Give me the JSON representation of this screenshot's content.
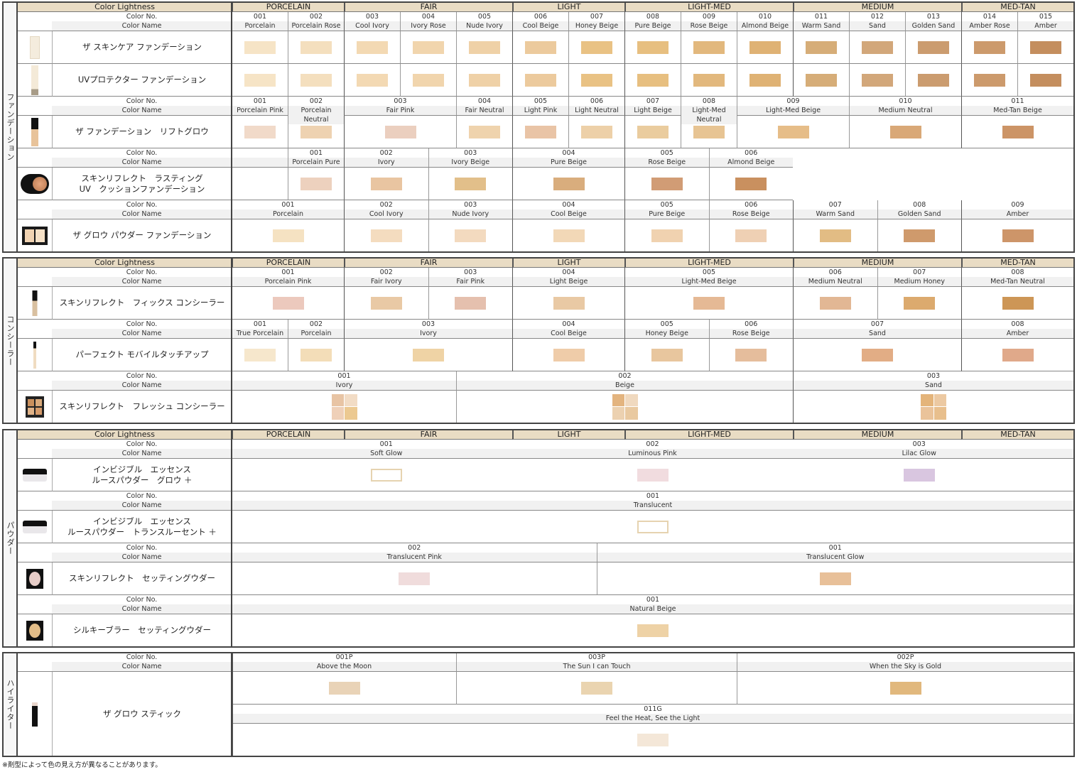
{
  "header": {
    "lightness_label": "Color Lightness",
    "levels": [
      "PORCELAIN",
      "FAIR",
      "LIGHT",
      "LIGHT-MED",
      "MEDIUM",
      "MED-TAN"
    ]
  },
  "labels": {
    "color_no": "Color No.",
    "color_name": "Color Name"
  },
  "sections": [
    {
      "category": "ファンデーション",
      "show_header": true,
      "groups": [
        {
          "shades": [
            {
              "no": "001",
              "name": "Porcelain"
            },
            {
              "no": "002",
              "name": "Porcelain Rose"
            },
            {
              "no": "003",
              "name": "Cool Ivory"
            },
            {
              "no": "004",
              "name": "Ivory Rose"
            },
            {
              "no": "005",
              "name": "Nude Ivory"
            },
            {
              "no": "006",
              "name": "Cool Beige"
            },
            {
              "no": "007",
              "name": "Honey Beige"
            },
            {
              "no": "008",
              "name": "Pure Beige"
            },
            {
              "no": "009",
              "name": "Rose Beige"
            },
            {
              "no": "010",
              "name": "Almond Beige"
            },
            {
              "no": "011",
              "name": "Warm Sand"
            },
            {
              "no": "012",
              "name": "Sand"
            },
            {
              "no": "013",
              "name": "Golden Sand"
            },
            {
              "no": "014",
              "name": "Amber Rose"
            },
            {
              "no": "015",
              "name": "Amber"
            }
          ],
          "products": [
            {
              "name": [
                "ザ スキンケア ファンデーション"
              ],
              "icon": "foundation-bottle-icon",
              "colors": [
                "#f6e4c6",
                "#f4dfbe",
                "#f3d9b3",
                "#f1d5ad",
                "#efd1a7",
                "#ecca9d",
                "#e9c284",
                "#e7bf80",
                "#e2b87d",
                "#dfb274",
                "#d6ad78",
                "#d2a77a",
                "#cb9c6f",
                "#cc9a6c",
                "#c48e5e"
              ]
            },
            {
              "name": [
                "UVプロテクター ファンデーション"
              ],
              "icon": "foundation-tube-icon",
              "colors": [
                "#f6e4c6",
                "#f4dfbe",
                "#f3d9b3",
                "#f1d5ad",
                "#efd1a7",
                "#ecca9d",
                "#e9c284",
                "#e7bf80",
                "#e2b87d",
                "#dfb274",
                "#d6ad78",
                "#d2a77a",
                "#cb9c6f",
                "#cc9a6c",
                "#c48e5e"
              ]
            }
          ]
        },
        {
          "shades": [
            {
              "no": "001",
              "name": "Porcelain Pink"
            },
            {
              "no": "002",
              "name": "Porcelain Neutral"
            },
            {
              "no": "003",
              "name": "Fair Pink"
            },
            {
              "no": "004",
              "name": "Fair Neutral"
            },
            {
              "no": "005",
              "name": "Light Pink"
            },
            {
              "no": "006",
              "name": "Light Neutral"
            },
            {
              "no": "007",
              "name": "Light Beige"
            },
            {
              "no": "008",
              "name": "Light-Med Neutral"
            },
            {
              "no": "009",
              "name": "Light-Med Beige"
            },
            {
              "no": "010",
              "name": "Medium Neutral"
            },
            {
              "no": "011",
              "name": "Med-Tan Beige"
            }
          ],
          "products": [
            {
              "name": [
                "ザ ファンデーション　リフトグロウ"
              ],
              "icon": "dropper-bottle-icon",
              "colors": [
                "#f1dac9",
                "#eed2b1",
                "#ebcfbf",
                "#efd3ad",
                "#e9c4a6",
                "#edd0a8",
                "#eacc9e",
                "#e7c493",
                "#e6bd88",
                "#d9a877",
                "#cc9466"
              ]
            }
          ]
        },
        {
          "shades": [
            {
              "no": "001",
              "name": "Porcelain Pure"
            },
            {
              "no": "002",
              "name": "Ivory"
            },
            {
              "no": "003",
              "name": "Ivory Beige"
            },
            {
              "no": "004",
              "name": "Pure Beige"
            },
            {
              "no": "005",
              "name": "Rose Beige"
            },
            {
              "no": "006",
              "name": "Almond Beige"
            }
          ],
          "products": [
            {
              "name": [
                "スキンリフレクト　ラスティング",
                "UV　クッションファンデーション"
              ],
              "icon": "cushion-compact-icon",
              "colors": [
                "#edd1be",
                "#e9c5a1",
                "#e2bf8a",
                "#d9ad7d",
                "#d19c75",
                "#c9905f"
              ]
            }
          ]
        },
        {
          "shades": [
            {
              "no": "001",
              "name": "Porcelain"
            },
            {
              "no": "002",
              "name": "Cool Ivory"
            },
            {
              "no": "003",
              "name": "Nude Ivory"
            },
            {
              "no": "004",
              "name": "Cool Beige"
            },
            {
              "no": "005",
              "name": "Pure Beige"
            },
            {
              "no": "006",
              "name": "Rose Beige"
            },
            {
              "no": "007",
              "name": "Warm Sand"
            },
            {
              "no": "008",
              "name": "Golden Sand"
            },
            {
              "no": "009",
              "name": "Amber"
            }
          ],
          "products": [
            {
              "name": [
                "ザ グロウ パウダー ファンデーション"
              ],
              "icon": "powder-compact-icon",
              "colors": [
                "#f5e2c2",
                "#f4dcbf",
                "#f3dabf",
                "#f2d8b7",
                "#f0d2b0",
                "#efd0b4",
                "#e2bc84",
                "#cf9a6c",
                "#cd9569"
              ]
            }
          ]
        }
      ]
    },
    {
      "category": "コンシーラー",
      "show_header": true,
      "groups": [
        {
          "shades": [
            {
              "no": "001",
              "name": "Porcelain Pink"
            },
            {
              "no": "002",
              "name": "Fair Ivory"
            },
            {
              "no": "003",
              "name": "Fair Pink"
            },
            {
              "no": "004",
              "name": "Light Beige"
            },
            {
              "no": "005",
              "name": "Light-Med Beige"
            },
            {
              "no": "006",
              "name": "Medium Neutral"
            },
            {
              "no": "007",
              "name": "Medium Honey"
            },
            {
              "no": "008",
              "name": "Med-Tan Neutral"
            }
          ],
          "products": [
            {
              "name": [
                "スキンリフレクト　フィックス コンシーラー"
              ],
              "icon": "concealer-wand-icon",
              "colors": [
                "#ecc9bd",
                "#e9c9a5",
                "#e5c0ae",
                "#e9c9a4",
                "#e5b995",
                "#e2b794",
                "#dcaa6e",
                "#cd9656"
              ]
            }
          ]
        },
        {
          "shades": [
            {
              "no": "001",
              "name": "True Porcelain"
            },
            {
              "no": "002",
              "name": "Porcelain"
            },
            {
              "no": "003",
              "name": "Ivory"
            },
            {
              "no": "004",
              "name": "Cool Beige"
            },
            {
              "no": "005",
              "name": "Honey Beige"
            },
            {
              "no": "006",
              "name": "Rose Beige"
            },
            {
              "no": "007",
              "name": "Sand"
            },
            {
              "no": "008",
              "name": "Amber"
            }
          ],
          "products": [
            {
              "name": [
                "パーフェクト モバイルタッチアップ"
              ],
              "icon": "touchup-pen-icon",
              "colors": [
                "#f6e7cc",
                "#f3ddb8",
                "#efd3a5",
                "#efcca9",
                "#e8c69e",
                "#e5bd9c",
                "#e2ad85",
                "#e0a98a"
              ]
            }
          ]
        },
        {
          "shades": [
            {
              "no": "001",
              "name": "Ivory"
            },
            {
              "no": "002",
              "name": "Beige"
            },
            {
              "no": "003",
              "name": "Sand"
            }
          ],
          "products": [
            {
              "name": [
                "スキンリフレクト　フレッシュ コンシーラー"
              ],
              "icon": "concealer-palette-icon",
              "colors": [
                [
                  "#e8c4a4",
                  "#f2dcc5",
                  "#efd0b8",
                  "#ecc991"
                ],
                [
                  "#e3b47f",
                  "#f0d9bf",
                  "#ecd1b0",
                  "#e9c9a0"
                ],
                [
                  "#e4b47a",
                  "#ecc9a2",
                  "#eac39a",
                  "#e8bf8d"
                ]
              ]
            }
          ]
        }
      ]
    },
    {
      "category": "パウダー",
      "show_header": true,
      "groups": [
        {
          "shades": [
            {
              "no": "001",
              "name": "Soft Glow"
            },
            {
              "no": "002",
              "name": "Luminous Pink"
            },
            {
              "no": "003",
              "name": "Lilac Glow"
            }
          ],
          "products": [
            {
              "name": [
                "インビジブル　エッセンス",
                "ルースパウダー　グロウ ＋"
              ],
              "icon": "loose-powder-jar-icon",
              "colors": [
                "outline",
                "#f1dcdf",
                "#d9c6e0"
              ]
            }
          ]
        },
        {
          "shades": [
            {
              "no": "001",
              "name": "Translucent"
            }
          ],
          "products": [
            {
              "name": [
                "インビジブル　エッセンス",
                "ルースパウダー　トランスルーセント ＋"
              ],
              "icon": "loose-powder-jar-icon",
              "colors": [
                "outline"
              ]
            }
          ]
        },
        {
          "shades": [
            {
              "no": "002",
              "name": "Translucent Pink"
            },
            {
              "no": "001",
              "name": "Translucent Glow"
            }
          ],
          "products": [
            {
              "name": [
                "スキンリフレクト　セッティングウダー"
              ],
              "icon": "pressed-powder-pink-icon",
              "colors": [
                "#f0dcdc",
                "#e8c099"
              ]
            }
          ]
        },
        {
          "shades": [
            {
              "no": "001",
              "name": "Natural Beige"
            }
          ],
          "products": [
            {
              "name": [
                "シルキーブラー　セッティングウダー"
              ],
              "icon": "pressed-powder-beige-icon",
              "colors": [
                "#eed2a6"
              ]
            }
          ]
        }
      ]
    },
    {
      "category": "ハイライター",
      "show_header": false,
      "merged_product": true,
      "groups": [
        {
          "shades": [
            {
              "no": "001P",
              "name": "Above the Moon"
            },
            {
              "no": "003P",
              "name": "The Sun I can Touch"
            },
            {
              "no": "002P",
              "name": "When the Sky is Gold"
            }
          ],
          "products": [
            {
              "name": [
                "ザ グロウ スティック"
              ],
              "icon": "highlighter-stick-icon",
              "colors": [
                "#e9d3b7",
                "#ead4b0",
                "#e1b87d"
              ]
            }
          ]
        },
        {
          "shades": [
            {
              "no": "011G",
              "name": "Feel the Heat, See the Light"
            }
          ],
          "products": [
            {
              "name": [],
              "icon": "",
              "colors": [
                "#f4e7d8"
              ]
            }
          ]
        }
      ]
    }
  ],
  "footnote": "※剤型によって色の見え方が異なることがあります。",
  "colors": {
    "header_bg": "#e9dcc4",
    "outline_swatch": "#e6d3b0",
    "border_dark": "#444444"
  }
}
